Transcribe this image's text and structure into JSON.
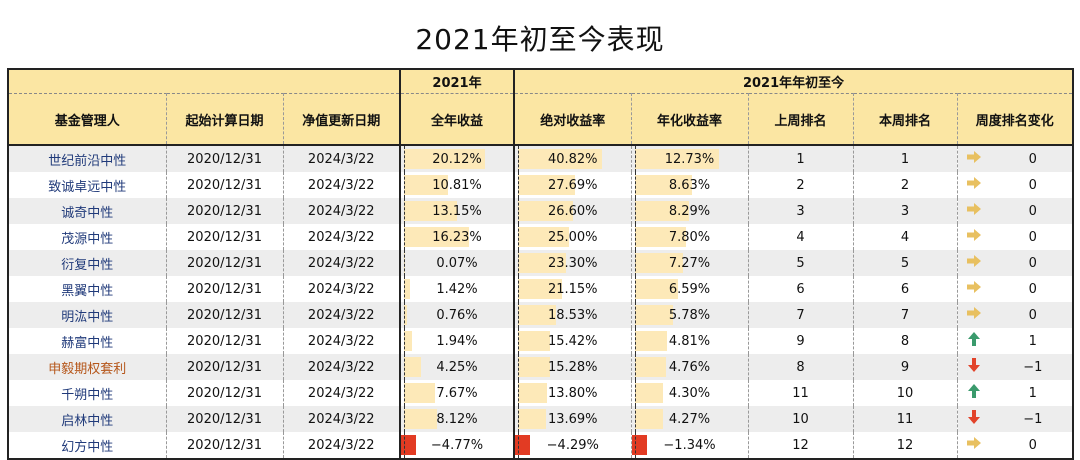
{
  "title": "2021年初至今表现",
  "headers": {
    "group_2021": "2021年",
    "group_ytd": "2021年年初至今",
    "manager": "基金管理人",
    "start_date": "起始计算日期",
    "nav_date": "净值更新日期",
    "full_year": "全年收益",
    "abs_return": "绝对收益率",
    "ann_return": "年化收益率",
    "last_rank": "上周排名",
    "this_rank": "本周排名",
    "rank_change": "周度排名变化"
  },
  "colors": {
    "header_bg": "#fbe6a3",
    "bar_pos": "#fde9b8",
    "bar_neg": "#e23b23",
    "up": "#3a9a6c",
    "down": "#e2432a",
    "flat": "#e8c060"
  },
  "rows": [
    {
      "manager": "世纪前沿中性",
      "start": "2020/12/31",
      "nav": "2024/3/22",
      "y2021": "20.12%",
      "y2021_v": 20.12,
      "abs": "40.82%",
      "abs_v": 40.82,
      "ann": "12.73%",
      "ann_v": 12.73,
      "last": "1",
      "this": "1",
      "trend": "flat",
      "change": "0"
    },
    {
      "manager": "致诚卓远中性",
      "start": "2020/12/31",
      "nav": "2024/3/22",
      "y2021": "10.81%",
      "y2021_v": 10.81,
      "abs": "27.69%",
      "abs_v": 27.69,
      "ann": "8.63%",
      "ann_v": 8.63,
      "last": "2",
      "this": "2",
      "trend": "flat",
      "change": "0"
    },
    {
      "manager": "诚奇中性",
      "start": "2020/12/31",
      "nav": "2024/3/22",
      "y2021": "13.15%",
      "y2021_v": 13.15,
      "abs": "26.60%",
      "abs_v": 26.6,
      "ann": "8.29%",
      "ann_v": 8.29,
      "last": "3",
      "this": "3",
      "trend": "flat",
      "change": "0"
    },
    {
      "manager": "茂源中性",
      "start": "2020/12/31",
      "nav": "2024/3/22",
      "y2021": "16.23%",
      "y2021_v": 16.23,
      "abs": "25.00%",
      "abs_v": 25.0,
      "ann": "7.80%",
      "ann_v": 7.8,
      "last": "4",
      "this": "4",
      "trend": "flat",
      "change": "0"
    },
    {
      "manager": "衍复中性",
      "start": "2020/12/31",
      "nav": "2024/3/22",
      "y2021": "0.07%",
      "y2021_v": 0.07,
      "abs": "23.30%",
      "abs_v": 23.3,
      "ann": "7.27%",
      "ann_v": 7.27,
      "last": "5",
      "this": "5",
      "trend": "flat",
      "change": "0"
    },
    {
      "manager": "黑翼中性",
      "start": "2020/12/31",
      "nav": "2024/3/22",
      "y2021": "1.42%",
      "y2021_v": 1.42,
      "abs": "21.15%",
      "abs_v": 21.15,
      "ann": "6.59%",
      "ann_v": 6.59,
      "last": "6",
      "this": "6",
      "trend": "flat",
      "change": "0"
    },
    {
      "manager": "明汯中性",
      "start": "2020/12/31",
      "nav": "2024/3/22",
      "y2021": "0.76%",
      "y2021_v": 0.76,
      "abs": "18.53%",
      "abs_v": 18.53,
      "ann": "5.78%",
      "ann_v": 5.78,
      "last": "7",
      "this": "7",
      "trend": "flat",
      "change": "0"
    },
    {
      "manager": "赫富中性",
      "start": "2020/12/31",
      "nav": "2024/3/22",
      "y2021": "1.94%",
      "y2021_v": 1.94,
      "abs": "15.42%",
      "abs_v": 15.42,
      "ann": "4.81%",
      "ann_v": 4.81,
      "last": "9",
      "this": "8",
      "trend": "up",
      "change": "1"
    },
    {
      "manager": "申毅期权套利",
      "start": "2020/12/31",
      "nav": "2024/3/22",
      "y2021": "4.25%",
      "y2021_v": 4.25,
      "abs": "15.28%",
      "abs_v": 15.28,
      "ann": "4.76%",
      "ann_v": 4.76,
      "last": "8",
      "this": "9",
      "trend": "down",
      "change": "−1",
      "orange": true
    },
    {
      "manager": "千朔中性",
      "start": "2020/12/31",
      "nav": "2024/3/22",
      "y2021": "7.67%",
      "y2021_v": 7.67,
      "abs": "13.80%",
      "abs_v": 13.8,
      "ann": "4.30%",
      "ann_v": 4.3,
      "last": "11",
      "this": "10",
      "trend": "up",
      "change": "1"
    },
    {
      "manager": "启林中性",
      "start": "2020/12/31",
      "nav": "2024/3/22",
      "y2021": "8.12%",
      "y2021_v": 8.12,
      "abs": "13.69%",
      "abs_v": 13.69,
      "ann": "4.27%",
      "ann_v": 4.27,
      "last": "10",
      "this": "11",
      "trend": "down",
      "change": "−1"
    },
    {
      "manager": "幻方中性",
      "start": "2020/12/31",
      "nav": "2024/3/22",
      "y2021": "−4.77%",
      "y2021_v": -4.77,
      "abs": "−4.29%",
      "abs_v": -4.29,
      "ann": "−1.34%",
      "ann_v": -1.34,
      "last": "12",
      "this": "12",
      "trend": "flat",
      "change": "0"
    }
  ]
}
